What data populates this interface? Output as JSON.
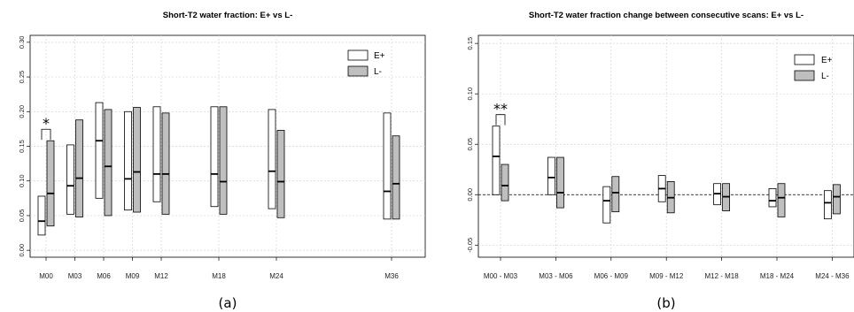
{
  "chart_data": [
    {
      "type": "box",
      "panel_label": "(a)",
      "title": "Short-T2 water fraction: E+ vs L-",
      "categories": [
        "M00",
        "M03",
        "M06",
        "M09",
        "M12",
        "M18",
        "M24",
        "M36"
      ],
      "x_months": [
        0,
        3,
        6,
        9,
        12,
        18,
        24,
        36
      ],
      "ylim": [
        -0.01,
        0.31
      ],
      "yticks": [
        "0.00",
        "0.05",
        "0.10",
        "0.15",
        "0.20",
        "0.25",
        "0.30"
      ],
      "ytick_values": [
        0,
        0.05,
        0.1,
        0.15,
        0.2,
        0.25,
        0.3
      ],
      "grid": true,
      "legend_position": "top-right",
      "series": [
        {
          "name": "E+",
          "color": "#ffffff",
          "boxes": [
            {
              "low": 0.022,
              "median": 0.042,
              "high": 0.078
            },
            {
              "low": 0.052,
              "median": 0.093,
              "high": 0.152
            },
            {
              "low": 0.075,
              "median": 0.158,
              "high": 0.213
            },
            {
              "low": 0.058,
              "median": 0.103,
              "high": 0.2
            },
            {
              "low": 0.07,
              "median": 0.11,
              "high": 0.207
            },
            {
              "low": 0.063,
              "median": 0.11,
              "high": 0.207
            },
            {
              "low": 0.06,
              "median": 0.114,
              "high": 0.203
            },
            {
              "low": 0.045,
              "median": 0.085,
              "high": 0.198
            }
          ]
        },
        {
          "name": "L-",
          "color": "#bfbfbf",
          "boxes": [
            {
              "low": 0.035,
              "median": 0.082,
              "high": 0.158
            },
            {
              "low": 0.048,
              "median": 0.104,
              "high": 0.188
            },
            {
              "low": 0.05,
              "median": 0.121,
              "high": 0.203
            },
            {
              "low": 0.055,
              "median": 0.113,
              "high": 0.206
            },
            {
              "low": 0.052,
              "median": 0.11,
              "high": 0.198
            },
            {
              "low": 0.052,
              "median": 0.099,
              "high": 0.207
            },
            {
              "low": 0.047,
              "median": 0.099,
              "high": 0.173
            },
            {
              "low": 0.045,
              "median": 0.096,
              "high": 0.165
            }
          ]
        }
      ],
      "significance": [
        {
          "category_index": 0,
          "label": "*"
        }
      ]
    },
    {
      "type": "box",
      "panel_label": "(b)",
      "title": "Short-T2 water fraction change between consecutive scans: E+ vs L-",
      "categories": [
        "M00 - M03",
        "M03 - M06",
        "M06 - M09",
        "M09 - M12",
        "M12 - M18",
        "M18 - M24",
        "M24 - M36"
      ],
      "ylim": [
        -0.062,
        0.158
      ],
      "yticks": [
        "-0.05",
        "0.00",
        "0.05",
        "0.10",
        "0.15"
      ],
      "ytick_values": [
        -0.05,
        0,
        0.05,
        0.1,
        0.15
      ],
      "reference_line": 0,
      "grid": true,
      "legend_position": "top-right",
      "series": [
        {
          "name": "E+",
          "color": "#ffffff",
          "boxes": [
            {
              "low": 0.0,
              "median": 0.038,
              "high": 0.068
            },
            {
              "low": 0.0,
              "median": 0.017,
              "high": 0.037
            },
            {
              "low": -0.028,
              "median": -0.006,
              "high": 0.008
            },
            {
              "low": -0.007,
              "median": 0.006,
              "high": 0.019
            },
            {
              "low": -0.01,
              "median": 0.001,
              "high": 0.011
            },
            {
              "low": -0.012,
              "median": -0.006,
              "high": 0.006
            },
            {
              "low": -0.024,
              "median": -0.008,
              "high": 0.004
            }
          ]
        },
        {
          "name": "L-",
          "color": "#bfbfbf",
          "boxes": [
            {
              "low": -0.006,
              "median": 0.009,
              "high": 0.03
            },
            {
              "low": -0.013,
              "median": 0.002,
              "high": 0.037
            },
            {
              "low": -0.017,
              "median": 0.002,
              "high": 0.018
            },
            {
              "low": -0.018,
              "median": -0.003,
              "high": 0.013
            },
            {
              "low": -0.016,
              "median": -0.002,
              "high": 0.011
            },
            {
              "low": -0.022,
              "median": -0.003,
              "high": 0.011
            },
            {
              "low": -0.019,
              "median": -0.002,
              "high": 0.01
            }
          ]
        }
      ],
      "significance": [
        {
          "category_index": 0,
          "label": "**"
        }
      ]
    }
  ]
}
